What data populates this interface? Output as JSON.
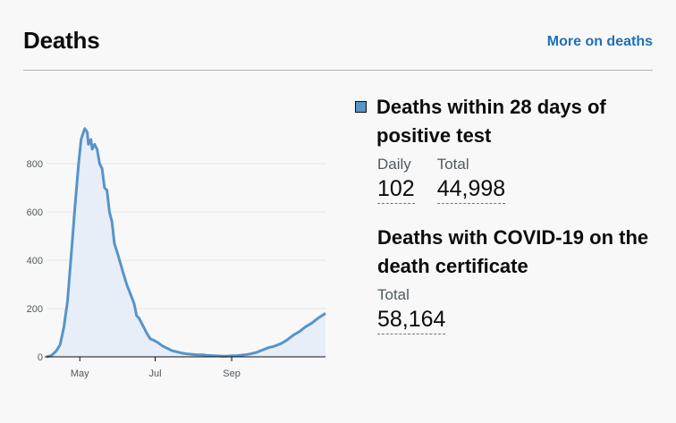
{
  "card": {
    "title": "Deaths",
    "more_link": "More on deaths"
  },
  "metrics": {
    "within28": {
      "heading": "Deaths within 28 days of positive test",
      "daily_label": "Daily",
      "daily_value": "102",
      "total_label": "Total",
      "total_value": "44,998"
    },
    "certificate": {
      "heading": "Deaths with COVID-19 on the death certificate",
      "total_label": "Total",
      "total_value": "58,164"
    }
  },
  "colors": {
    "series_line": "#5694ca",
    "series_fill": "#e8eef7",
    "link": "#1d70b8"
  },
  "chart_data": {
    "type": "area",
    "x_tick_labels": [
      "May",
      "Jul",
      "Sep"
    ],
    "x_tick_day_index": [
      27,
      88,
      150
    ],
    "y_ticks": [
      0,
      200,
      400,
      600,
      800
    ],
    "ylim": [
      0,
      1000
    ],
    "xlim": [
      0,
      226
    ],
    "grid": true,
    "series": [
      {
        "x": [
          0,
          4,
          8,
          11,
          14,
          17,
          20,
          23,
          26,
          28,
          29,
          31,
          33,
          34,
          36,
          37,
          39,
          41,
          43,
          45,
          47,
          49,
          51,
          53,
          55,
          58,
          62,
          65,
          68,
          71,
          73,
          75,
          77,
          79,
          81,
          84,
          87,
          90,
          94,
          98,
          102,
          106,
          110,
          114,
          118,
          122,
          126,
          130,
          134,
          138,
          142,
          146,
          150,
          155,
          160,
          165,
          170,
          175,
          180,
          185,
          190,
          195,
          200,
          205,
          210,
          215,
          220,
          226
        ],
        "y": [
          0,
          5,
          25,
          50,
          120,
          230,
          420,
          620,
          800,
          900,
          915,
          945,
          930,
          880,
          900,
          860,
          880,
          860,
          800,
          780,
          700,
          690,
          600,
          560,
          470,
          420,
          350,
          300,
          260,
          220,
          170,
          160,
          140,
          120,
          100,
          75,
          68,
          60,
          45,
          35,
          25,
          20,
          15,
          12,
          10,
          8,
          8,
          6,
          5,
          4,
          3,
          3,
          4,
          5,
          8,
          12,
          18,
          28,
          38,
          45,
          55,
          70,
          90,
          105,
          125,
          140,
          160,
          180
        ]
      }
    ]
  }
}
